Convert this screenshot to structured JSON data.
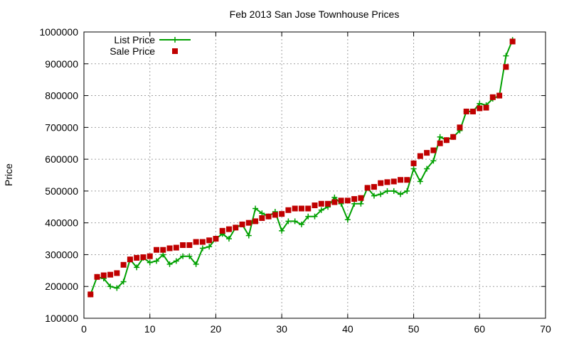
{
  "chart_data": {
    "type": "line",
    "title": "Feb 2013 San Jose Townhouse Prices",
    "xlabel": "",
    "ylabel": "Price",
    "xlim": [
      0,
      70
    ],
    "ylim": [
      100000,
      1000000
    ],
    "xticks": [
      0,
      10,
      20,
      30,
      40,
      50,
      60,
      70
    ],
    "yticks": [
      100000,
      200000,
      300000,
      400000,
      500000,
      600000,
      700000,
      800000,
      900000,
      1000000
    ],
    "grid": true,
    "legend_position": "top-left",
    "series": [
      {
        "name": "List Price",
        "style": "lines+crosses",
        "color": "#00a000",
        "x": [
          1,
          2,
          3,
          4,
          5,
          6,
          7,
          8,
          9,
          10,
          11,
          12,
          13,
          14,
          15,
          16,
          17,
          18,
          19,
          20,
          21,
          22,
          23,
          24,
          25,
          26,
          27,
          28,
          29,
          30,
          31,
          32,
          33,
          34,
          35,
          36,
          37,
          38,
          39,
          40,
          41,
          42,
          43,
          44,
          45,
          46,
          47,
          48,
          49,
          50,
          51,
          52,
          53,
          54,
          55,
          56,
          57,
          58,
          59,
          60,
          61,
          62,
          63,
          64,
          65
        ],
        "values": [
          175000,
          230000,
          225000,
          200000,
          195000,
          215000,
          285000,
          260000,
          290000,
          275000,
          280000,
          300000,
          270000,
          280000,
          295000,
          295000,
          270000,
          320000,
          325000,
          350000,
          365000,
          350000,
          385000,
          395000,
          360000,
          445000,
          430000,
          420000,
          435000,
          375000,
          405000,
          405000,
          395000,
          420000,
          420000,
          440000,
          450000,
          480000,
          460000,
          410000,
          460000,
          460000,
          510000,
          485000,
          490000,
          500000,
          500000,
          490000,
          500000,
          570000,
          530000,
          570000,
          595000,
          670000,
          660000,
          670000,
          690000,
          750000,
          750000,
          775000,
          770000,
          790000,
          800000,
          925000,
          975000
        ]
      },
      {
        "name": "Sale Price",
        "style": "squares",
        "color": "#c00000",
        "x": [
          1,
          2,
          3,
          4,
          5,
          6,
          7,
          8,
          9,
          10,
          11,
          12,
          13,
          14,
          15,
          16,
          17,
          18,
          19,
          20,
          21,
          22,
          23,
          24,
          25,
          26,
          27,
          28,
          29,
          30,
          31,
          32,
          33,
          34,
          35,
          36,
          37,
          38,
          39,
          40,
          41,
          42,
          43,
          44,
          45,
          46,
          47,
          48,
          49,
          50,
          51,
          52,
          53,
          54,
          55,
          56,
          57,
          58,
          59,
          60,
          61,
          62,
          63,
          64,
          65
        ],
        "values": [
          175000,
          230000,
          235000,
          237000,
          242000,
          268000,
          285000,
          290000,
          292000,
          295000,
          315000,
          315000,
          320000,
          322000,
          330000,
          330000,
          340000,
          340000,
          345000,
          350000,
          375000,
          380000,
          385000,
          395000,
          400000,
          405000,
          415000,
          420000,
          425000,
          428000,
          440000,
          445000,
          445000,
          445000,
          455000,
          460000,
          460000,
          465000,
          470000,
          470000,
          475000,
          478000,
          510000,
          513000,
          525000,
          528000,
          530000,
          535000,
          535000,
          587000,
          610000,
          620000,
          628000,
          650000,
          660000,
          670000,
          700000,
          750000,
          750000,
          760000,
          762000,
          795000,
          800000,
          890000,
          970000
        ]
      }
    ]
  }
}
